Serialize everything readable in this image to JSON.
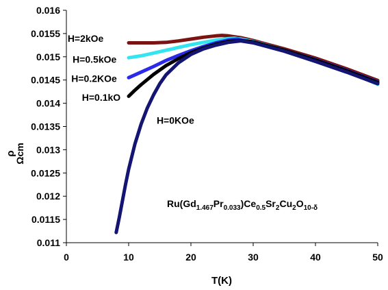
{
  "chart_data": {
    "type": "line",
    "title": "",
    "xlabel": "T(K)",
    "ylabel_main": "ρ",
    "ylabel_sub": "Ωcm",
    "xlim": [
      0,
      50
    ],
    "ylim": [
      0.011,
      0.016
    ],
    "x_ticks": [
      "0",
      "10",
      "20",
      "30",
      "40",
      "50"
    ],
    "y_ticks": [
      "0.011",
      "0.0115",
      "0.012",
      "0.0125",
      "0.013",
      "0.0135",
      "0.014",
      "0.0145",
      "0.015",
      "0.0155",
      "0.016"
    ],
    "grid": false,
    "legend": "none",
    "annotation": {
      "parts": [
        {
          "text": "Ru(Gd",
          "sub": false
        },
        {
          "text": "1.467",
          "sub": true
        },
        {
          "text": "Pr",
          "sub": false
        },
        {
          "text": "0.033",
          "sub": true
        },
        {
          "text": ")Ce",
          "sub": false
        },
        {
          "text": "0.5",
          "sub": true
        },
        {
          "text": "Sr",
          "sub": false
        },
        {
          "text": "2",
          "sub": true
        },
        {
          "text": "Cu",
          "sub": false
        },
        {
          "text": "2",
          "sub": true
        },
        {
          "text": "O",
          "sub": false
        },
        {
          "text": "10-δ",
          "sub": true
        }
      ]
    },
    "series": [
      {
        "name": "H=2kOe",
        "color": "#7b1313",
        "x": [
          10,
          12,
          14,
          16,
          18,
          20,
          22,
          24,
          25,
          26,
          28,
          30,
          35,
          40,
          45,
          50
        ],
        "y": [
          0.0153,
          0.0153,
          0.0153,
          0.01531,
          0.01534,
          0.01538,
          0.01542,
          0.01545,
          0.01546,
          0.01545,
          0.01541,
          0.01535,
          0.01517,
          0.01497,
          0.01474,
          0.01449
        ]
      },
      {
        "name": "H=0.5kOe",
        "color": "#33e5f0",
        "x": [
          10,
          12,
          14,
          16,
          18,
          20,
          22,
          24,
          26,
          27,
          28,
          30,
          35,
          40,
          45,
          50
        ],
        "y": [
          0.01498,
          0.01502,
          0.01508,
          0.01514,
          0.0152,
          0.01526,
          0.01531,
          0.01536,
          0.01539,
          0.0154,
          0.01538,
          0.01533,
          0.01514,
          0.01493,
          0.01469,
          0.01441
        ]
      },
      {
        "name": "H=0.2KOe",
        "color": "#2a2ae8",
        "x": [
          10,
          12,
          14,
          16,
          18,
          20,
          22,
          24,
          26,
          27.5,
          28,
          30,
          35,
          40,
          45,
          50
        ],
        "y": [
          0.01455,
          0.01467,
          0.01479,
          0.01492,
          0.01503,
          0.01513,
          0.01522,
          0.0153,
          0.01536,
          0.01538,
          0.01536,
          0.01532,
          0.01514,
          0.01494,
          0.01471,
          0.01446
        ]
      },
      {
        "name": "H=0.1kO",
        "color": "#000000",
        "x": [
          10,
          11,
          12,
          14,
          16,
          18,
          20,
          22,
          24,
          26,
          28,
          30,
          35,
          40,
          45,
          50
        ],
        "y": [
          0.01415,
          0.01428,
          0.0144,
          0.01462,
          0.01481,
          0.01496,
          0.01509,
          0.01519,
          0.01527,
          0.01533,
          0.01535,
          0.01532,
          0.01514,
          0.01493,
          0.0147,
          0.01445
        ]
      },
      {
        "name": "H=0KOe",
        "color": "#141472",
        "x": [
          8,
          8.5,
          9,
          9.5,
          10,
          11,
          12,
          13,
          14,
          15,
          16,
          18,
          20,
          22,
          24,
          26,
          28,
          30,
          35,
          40,
          45,
          50
        ],
        "y": [
          0.01122,
          0.01155,
          0.0119,
          0.01225,
          0.01258,
          0.01312,
          0.01355,
          0.0139,
          0.01418,
          0.01442,
          0.01461,
          0.01487,
          0.01505,
          0.01517,
          0.01525,
          0.01531,
          0.01534,
          0.0153,
          0.01512,
          0.0149,
          0.01467,
          0.01442
        ]
      }
    ],
    "series_labels": [
      {
        "text": "H=2kOe",
        "x": 0.2,
        "y": 0.01532
      },
      {
        "text": "H=0.5kOe",
        "x": 1.0,
        "y": 0.01487
      },
      {
        "text": "H=0.2KOe",
        "x": 0.8,
        "y": 0.01446
      },
      {
        "text": "H=0.1kO",
        "x": 2.5,
        "y": 0.01405
      },
      {
        "text": "H=0KOe",
        "x": 14.5,
        "y": 0.01356
      }
    ]
  }
}
